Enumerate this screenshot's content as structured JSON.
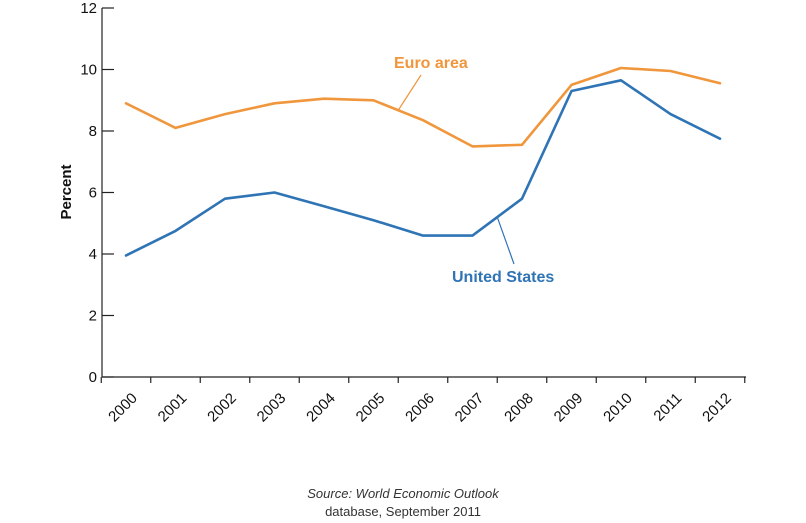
{
  "chart_data": {
    "type": "line",
    "title": "",
    "xlabel": "",
    "ylabel": "Percent",
    "x": [
      "2000",
      "2001",
      "2002",
      "2003",
      "2004",
      "2005",
      "2006",
      "2007",
      "2008",
      "2009",
      "2010",
      "2011",
      "2012"
    ],
    "ylim": [
      0,
      12
    ],
    "yticks": [
      "0",
      "2",
      "4",
      "6",
      "8",
      "10",
      "12"
    ],
    "series": [
      {
        "name": "Euro area",
        "color": "#f0963c",
        "values": [
          8.9,
          8.1,
          8.55,
          8.9,
          9.05,
          9.0,
          8.35,
          7.5,
          7.55,
          9.5,
          10.05,
          9.95,
          9.55
        ]
      },
      {
        "name": "United States",
        "color": "#2f74b5",
        "values": [
          3.95,
          4.75,
          5.8,
          6.0,
          5.55,
          5.1,
          4.6,
          4.6,
          5.8,
          9.3,
          9.65,
          8.55,
          7.75
        ]
      }
    ],
    "grid": false,
    "legend": "inline labels"
  },
  "source": {
    "line1": "Source: World Economic Outlook",
    "line2": "database, September 2011"
  }
}
